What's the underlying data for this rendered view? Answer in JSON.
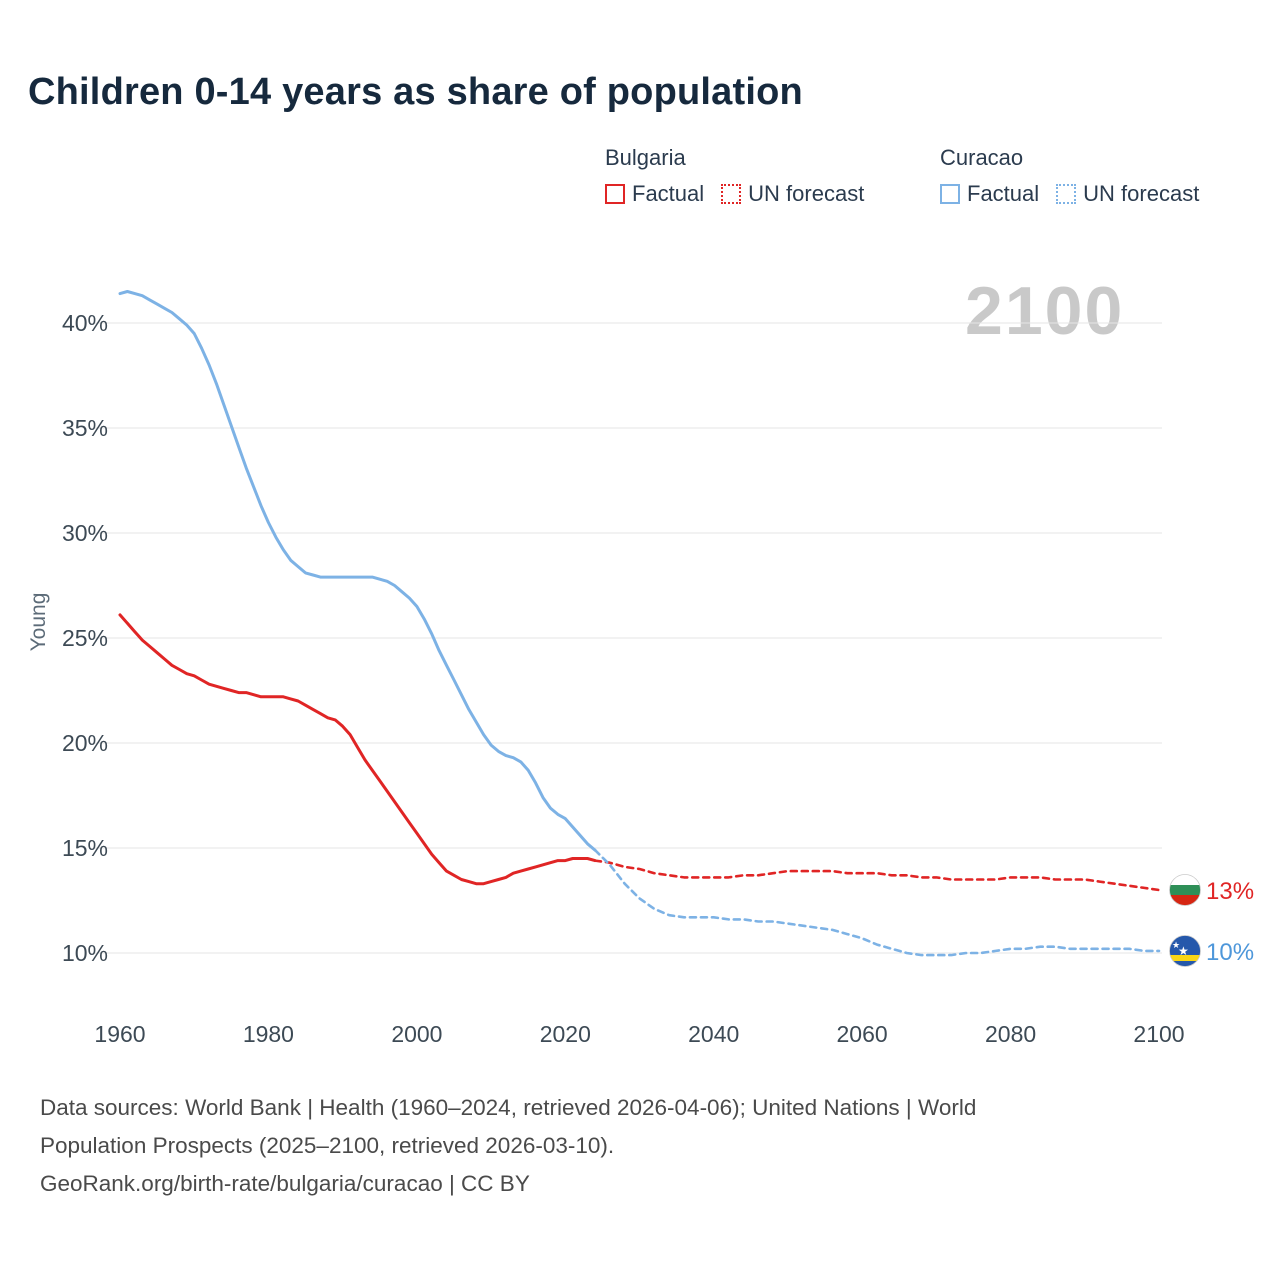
{
  "title": "Children 0-14 years as share of population",
  "watermark": "2100",
  "ylabel": "Young",
  "legend": {
    "groups": [
      {
        "country": "Bulgaria",
        "factual": "Factual",
        "forecast": "UN forecast",
        "color": "#e02525"
      },
      {
        "country": "Curacao",
        "factual": "Factual",
        "forecast": "UN forecast",
        "color": "#7db2e5"
      }
    ]
  },
  "end_labels": [
    {
      "country": "Bulgaria",
      "value": "13%",
      "color": "#e02525"
    },
    {
      "country": "Curacao",
      "value": "10%",
      "color": "#4e97da"
    }
  ],
  "footer": {
    "lines": [
      "Data sources: World Bank | Health (1960–2024, retrieved 2026-04-06); United Nations | World",
      "Population Prospects (2025–2100, retrieved 2026-03-10).",
      "GeoRank.org/birth-rate/bulgaria/curacao | CC BY"
    ]
  },
  "chart_data": {
    "type": "line",
    "title": "Children 0-14 years as share of population",
    "xlabel": "",
    "ylabel": "Young",
    "xlim": [
      1955,
      2112
    ],
    "ylim": [
      8.5,
      43
    ],
    "xticks": [
      1960,
      1980,
      2000,
      2020,
      2040,
      2060,
      2080,
      2100
    ],
    "yticks": [
      10,
      15,
      20,
      25,
      30,
      35,
      40
    ],
    "ytick_suffix": "%",
    "grid": "horizontal",
    "legend_position": "top",
    "series": [
      {
        "id": "bulgaria-factual",
        "name": "Bulgaria Factual",
        "color": "#e02525",
        "style": "solid",
        "width": 3,
        "points": [
          [
            1960,
            26.1
          ],
          [
            1961,
            25.7
          ],
          [
            1962,
            25.3
          ],
          [
            1963,
            24.9
          ],
          [
            1964,
            24.6
          ],
          [
            1965,
            24.3
          ],
          [
            1966,
            24.0
          ],
          [
            1967,
            23.7
          ],
          [
            1968,
            23.5
          ],
          [
            1969,
            23.3
          ],
          [
            1970,
            23.2
          ],
          [
            1971,
            23.0
          ],
          [
            1972,
            22.8
          ],
          [
            1973,
            22.7
          ],
          [
            1974,
            22.6
          ],
          [
            1975,
            22.5
          ],
          [
            1976,
            22.4
          ],
          [
            1977,
            22.4
          ],
          [
            1978,
            22.3
          ],
          [
            1979,
            22.2
          ],
          [
            1980,
            22.2
          ],
          [
            1981,
            22.2
          ],
          [
            1982,
            22.2
          ],
          [
            1983,
            22.1
          ],
          [
            1984,
            22.0
          ],
          [
            1985,
            21.8
          ],
          [
            1986,
            21.6
          ],
          [
            1987,
            21.4
          ],
          [
            1988,
            21.2
          ],
          [
            1989,
            21.1
          ],
          [
            1990,
            20.8
          ],
          [
            1991,
            20.4
          ],
          [
            1992,
            19.8
          ],
          [
            1993,
            19.2
          ],
          [
            1994,
            18.7
          ],
          [
            1995,
            18.2
          ],
          [
            1996,
            17.7
          ],
          [
            1997,
            17.2
          ],
          [
            1998,
            16.7
          ],
          [
            1999,
            16.2
          ],
          [
            2000,
            15.7
          ],
          [
            2001,
            15.2
          ],
          [
            2002,
            14.7
          ],
          [
            2003,
            14.3
          ],
          [
            2004,
            13.9
          ],
          [
            2005,
            13.7
          ],
          [
            2006,
            13.5
          ],
          [
            2007,
            13.4
          ],
          [
            2008,
            13.3
          ],
          [
            2009,
            13.3
          ],
          [
            2010,
            13.4
          ],
          [
            2011,
            13.5
          ],
          [
            2012,
            13.6
          ],
          [
            2013,
            13.8
          ],
          [
            2014,
            13.9
          ],
          [
            2015,
            14.0
          ],
          [
            2016,
            14.1
          ],
          [
            2017,
            14.2
          ],
          [
            2018,
            14.3
          ],
          [
            2019,
            14.4
          ],
          [
            2020,
            14.4
          ],
          [
            2021,
            14.5
          ],
          [
            2022,
            14.5
          ],
          [
            2023,
            14.5
          ],
          [
            2024,
            14.4
          ]
        ]
      },
      {
        "id": "bulgaria-forecast",
        "name": "Bulgaria UN forecast",
        "color": "#e02525",
        "style": "dashed",
        "width": 2.6,
        "points": [
          [
            2024,
            14.4
          ],
          [
            2026,
            14.3
          ],
          [
            2028,
            14.1
          ],
          [
            2030,
            14.0
          ],
          [
            2032,
            13.8
          ],
          [
            2034,
            13.7
          ],
          [
            2036,
            13.6
          ],
          [
            2038,
            13.6
          ],
          [
            2040,
            13.6
          ],
          [
            2042,
            13.6
          ],
          [
            2044,
            13.7
          ],
          [
            2046,
            13.7
          ],
          [
            2048,
            13.8
          ],
          [
            2050,
            13.9
          ],
          [
            2052,
            13.9
          ],
          [
            2054,
            13.9
          ],
          [
            2056,
            13.9
          ],
          [
            2058,
            13.8
          ],
          [
            2060,
            13.8
          ],
          [
            2062,
            13.8
          ],
          [
            2064,
            13.7
          ],
          [
            2066,
            13.7
          ],
          [
            2068,
            13.6
          ],
          [
            2070,
            13.6
          ],
          [
            2072,
            13.5
          ],
          [
            2074,
            13.5
          ],
          [
            2076,
            13.5
          ],
          [
            2078,
            13.5
          ],
          [
            2080,
            13.6
          ],
          [
            2082,
            13.6
          ],
          [
            2084,
            13.6
          ],
          [
            2086,
            13.5
          ],
          [
            2088,
            13.5
          ],
          [
            2090,
            13.5
          ],
          [
            2092,
            13.4
          ],
          [
            2094,
            13.3
          ],
          [
            2096,
            13.2
          ],
          [
            2098,
            13.1
          ],
          [
            2100,
            13.0
          ]
        ]
      },
      {
        "id": "curacao-factual",
        "name": "Curacao Factual",
        "color": "#7db2e5",
        "style": "solid",
        "width": 3,
        "points": [
          [
            1960,
            41.4
          ],
          [
            1961,
            41.5
          ],
          [
            1962,
            41.4
          ],
          [
            1963,
            41.3
          ],
          [
            1964,
            41.1
          ],
          [
            1965,
            40.9
          ],
          [
            1966,
            40.7
          ],
          [
            1967,
            40.5
          ],
          [
            1968,
            40.2
          ],
          [
            1969,
            39.9
          ],
          [
            1970,
            39.5
          ],
          [
            1971,
            38.8
          ],
          [
            1972,
            38.0
          ],
          [
            1973,
            37.1
          ],
          [
            1974,
            36.1
          ],
          [
            1975,
            35.1
          ],
          [
            1976,
            34.1
          ],
          [
            1977,
            33.1
          ],
          [
            1978,
            32.2
          ],
          [
            1979,
            31.3
          ],
          [
            1980,
            30.5
          ],
          [
            1981,
            29.8
          ],
          [
            1982,
            29.2
          ],
          [
            1983,
            28.7
          ],
          [
            1984,
            28.4
          ],
          [
            1985,
            28.1
          ],
          [
            1986,
            28.0
          ],
          [
            1987,
            27.9
          ],
          [
            1988,
            27.9
          ],
          [
            1989,
            27.9
          ],
          [
            1990,
            27.9
          ],
          [
            1991,
            27.9
          ],
          [
            1992,
            27.9
          ],
          [
            1993,
            27.9
          ],
          [
            1994,
            27.9
          ],
          [
            1995,
            27.8
          ],
          [
            1996,
            27.7
          ],
          [
            1997,
            27.5
          ],
          [
            1998,
            27.2
          ],
          [
            1999,
            26.9
          ],
          [
            2000,
            26.5
          ],
          [
            2001,
            25.9
          ],
          [
            2002,
            25.2
          ],
          [
            2003,
            24.4
          ],
          [
            2004,
            23.7
          ],
          [
            2005,
            23.0
          ],
          [
            2006,
            22.3
          ],
          [
            2007,
            21.6
          ],
          [
            2008,
            21.0
          ],
          [
            2009,
            20.4
          ],
          [
            2010,
            19.9
          ],
          [
            2011,
            19.6
          ],
          [
            2012,
            19.4
          ],
          [
            2013,
            19.3
          ],
          [
            2014,
            19.1
          ],
          [
            2015,
            18.7
          ],
          [
            2016,
            18.1
          ],
          [
            2017,
            17.4
          ],
          [
            2018,
            16.9
          ],
          [
            2019,
            16.6
          ],
          [
            2020,
            16.4
          ],
          [
            2021,
            16.0
          ],
          [
            2022,
            15.6
          ],
          [
            2023,
            15.2
          ],
          [
            2024,
            14.9
          ]
        ]
      },
      {
        "id": "curacao-forecast",
        "name": "Curacao UN forecast",
        "color": "#7db2e5",
        "style": "dashed",
        "width": 2.6,
        "points": [
          [
            2024,
            14.9
          ],
          [
            2026,
            14.2
          ],
          [
            2028,
            13.3
          ],
          [
            2030,
            12.6
          ],
          [
            2032,
            12.1
          ],
          [
            2034,
            11.8
          ],
          [
            2036,
            11.7
          ],
          [
            2038,
            11.7
          ],
          [
            2040,
            11.7
          ],
          [
            2042,
            11.6
          ],
          [
            2044,
            11.6
          ],
          [
            2046,
            11.5
          ],
          [
            2048,
            11.5
          ],
          [
            2050,
            11.4
          ],
          [
            2052,
            11.3
          ],
          [
            2054,
            11.2
          ],
          [
            2056,
            11.1
          ],
          [
            2058,
            10.9
          ],
          [
            2060,
            10.7
          ],
          [
            2062,
            10.4
          ],
          [
            2064,
            10.2
          ],
          [
            2066,
            10.0
          ],
          [
            2068,
            9.9
          ],
          [
            2070,
            9.9
          ],
          [
            2072,
            9.9
          ],
          [
            2074,
            10.0
          ],
          [
            2076,
            10.0
          ],
          [
            2078,
            10.1
          ],
          [
            2080,
            10.2
          ],
          [
            2082,
            10.2
          ],
          [
            2084,
            10.3
          ],
          [
            2086,
            10.3
          ],
          [
            2088,
            10.2
          ],
          [
            2090,
            10.2
          ],
          [
            2092,
            10.2
          ],
          [
            2094,
            10.2
          ],
          [
            2096,
            10.2
          ],
          [
            2098,
            10.1
          ],
          [
            2100,
            10.1
          ]
        ]
      }
    ]
  }
}
